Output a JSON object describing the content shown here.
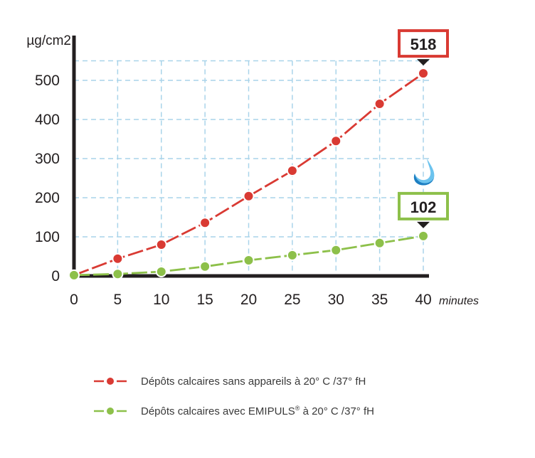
{
  "chart_data": {
    "type": "line",
    "title": "",
    "xlabel": "minutes",
    "ylabel": "µg/cm2",
    "x": [
      0,
      5,
      10,
      15,
      20,
      25,
      30,
      35,
      40
    ],
    "x_ticks": [
      "0",
      "5",
      "10",
      "15",
      "20",
      "25",
      "30",
      "35",
      "40"
    ],
    "y_ticks": [
      "0",
      "100",
      "200",
      "300",
      "400",
      "500"
    ],
    "xlim": [
      0,
      40
    ],
    "ylim": [
      0,
      550
    ],
    "grid": true,
    "legend_position": "bottom",
    "series": [
      {
        "name": "Dépôts calcaires sans appareils à 20° C /37° fH",
        "color": "#d93a33",
        "values": [
          2,
          44,
          80,
          136,
          204,
          269,
          345,
          440,
          518
        ]
      },
      {
        "name": "Dépôts calcaires avec EMIPULS® à 20° C /37° fH",
        "color": "#8dc04a",
        "values": [
          2,
          5,
          11,
          24,
          40,
          53,
          66,
          84,
          102
        ]
      }
    ],
    "annotations": [
      {
        "series": 0,
        "x": 40,
        "label": "518",
        "border_color": "#d93a33"
      },
      {
        "series": 1,
        "x": 40,
        "label": "102",
        "border_color": "#8dc04a",
        "icon": "water-drop-icon"
      }
    ]
  },
  "legend": {
    "items": [
      {
        "text": "Dépôts calcaires sans appareils à 20° C /37° fH",
        "color": "#d93a33"
      },
      {
        "text_before": "Dépôts calcaires avec EMIPULS",
        "sup": "®",
        "text_after": " à 20° C /37° fH",
        "color": "#8dc04a"
      }
    ]
  },
  "colors": {
    "grid": "#a9d4ea",
    "axis": "#231f20",
    "red": "#d93a33",
    "green": "#8dc04a",
    "drop_dark": "#1e7fc2",
    "drop_light": "#6cc3ee"
  }
}
